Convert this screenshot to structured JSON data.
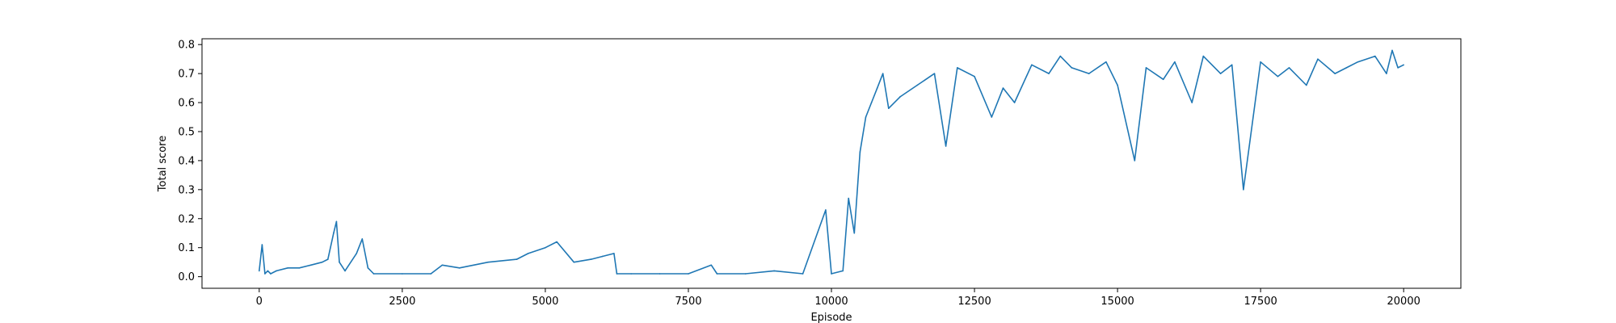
{
  "chart_data": {
    "type": "line",
    "title": "",
    "xlabel": "Episode",
    "ylabel": "Total score",
    "xlim": [
      -1000,
      21000
    ],
    "ylim": [
      -0.04,
      0.82
    ],
    "xticks": [
      0,
      2500,
      5000,
      7500,
      10000,
      12500,
      15000,
      17500,
      20000
    ],
    "xtick_labels": [
      "0",
      "2500",
      "5000",
      "7500",
      "10000",
      "12500",
      "15000",
      "17500",
      "20000"
    ],
    "yticks": [
      0.0,
      0.1,
      0.2,
      0.3,
      0.4,
      0.5,
      0.6,
      0.7,
      0.8
    ],
    "ytick_labels": [
      "0.0",
      "0.1",
      "0.2",
      "0.3",
      "0.4",
      "0.5",
      "0.6",
      "0.7",
      "0.8"
    ],
    "grid": false,
    "legend": "none",
    "line_color": "#1f77b4",
    "series": [
      {
        "name": "",
        "x": [
          0,
          50,
          100,
          150,
          200,
          300,
          500,
          700,
          900,
          1100,
          1200,
          1300,
          1350,
          1400,
          1500,
          1700,
          1800,
          1900,
          2000,
          2500,
          3000,
          3200,
          3500,
          4000,
          4500,
          4700,
          5000,
          5200,
          5500,
          5800,
          6000,
          6200,
          6250,
          6500,
          7000,
          7500,
          7900,
          8000,
          8500,
          9000,
          9500,
          9900,
          10000,
          10200,
          10300,
          10400,
          10500,
          10600,
          10700,
          10800,
          10900,
          11000,
          11200,
          11500,
          11800,
          12000,
          12200,
          12500,
          12800,
          13000,
          13200,
          13500,
          13800,
          14000,
          14200,
          14500,
          14800,
          15000,
          15300,
          15500,
          15800,
          16000,
          16300,
          16500,
          16800,
          17000,
          17200,
          17500,
          17800,
          18000,
          18300,
          18500,
          18800,
          19000,
          19200,
          19500,
          19700,
          19800,
          19900,
          20000
        ],
        "y": [
          0.02,
          0.11,
          0.01,
          0.02,
          0.01,
          0.02,
          0.03,
          0.03,
          0.04,
          0.05,
          0.06,
          0.15,
          0.19,
          0.05,
          0.02,
          0.08,
          0.13,
          0.03,
          0.01,
          0.01,
          0.01,
          0.04,
          0.03,
          0.05,
          0.06,
          0.08,
          0.1,
          0.12,
          0.05,
          0.06,
          0.07,
          0.08,
          0.01,
          0.01,
          0.01,
          0.01,
          0.04,
          0.01,
          0.01,
          0.02,
          0.01,
          0.23,
          0.01,
          0.02,
          0.27,
          0.15,
          0.43,
          0.55,
          0.6,
          0.65,
          0.7,
          0.58,
          0.62,
          0.66,
          0.7,
          0.45,
          0.72,
          0.69,
          0.55,
          0.65,
          0.6,
          0.73,
          0.7,
          0.76,
          0.72,
          0.7,
          0.74,
          0.66,
          0.4,
          0.72,
          0.68,
          0.74,
          0.6,
          0.76,
          0.7,
          0.73,
          0.3,
          0.74,
          0.69,
          0.72,
          0.66,
          0.75,
          0.7,
          0.72,
          0.74,
          0.76,
          0.7,
          0.78,
          0.72,
          0.73
        ]
      }
    ]
  }
}
